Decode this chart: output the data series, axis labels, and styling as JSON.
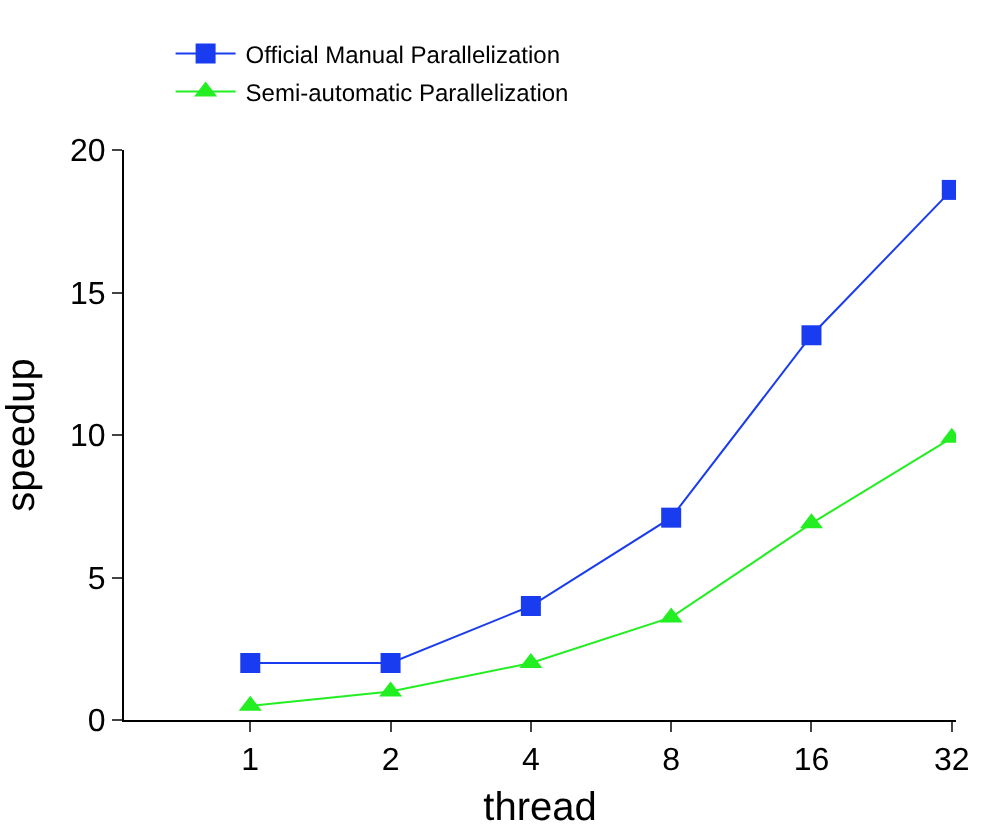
{
  "chart_data": {
    "type": "line",
    "xlabel": "thread",
    "ylabel": "speedup",
    "categories": [
      "1",
      "2",
      "4",
      "8",
      "16",
      "32"
    ],
    "series": [
      {
        "name": "Official Manual Parallelization",
        "color": "#1a3cf0",
        "marker": "square",
        "values": [
          2,
          2,
          4,
          7.1,
          13.5,
          18.6
        ]
      },
      {
        "name": "Semi-automatic Parallelization",
        "color": "#22ee22",
        "marker": "triangle",
        "values": [
          0.5,
          1,
          2,
          3.6,
          6.9,
          9.9
        ]
      }
    ],
    "ylim": [
      0,
      20
    ],
    "yticks": [
      0,
      5,
      10,
      15,
      20
    ],
    "grid": false,
    "legend": "top",
    "line_style": "solid"
  }
}
